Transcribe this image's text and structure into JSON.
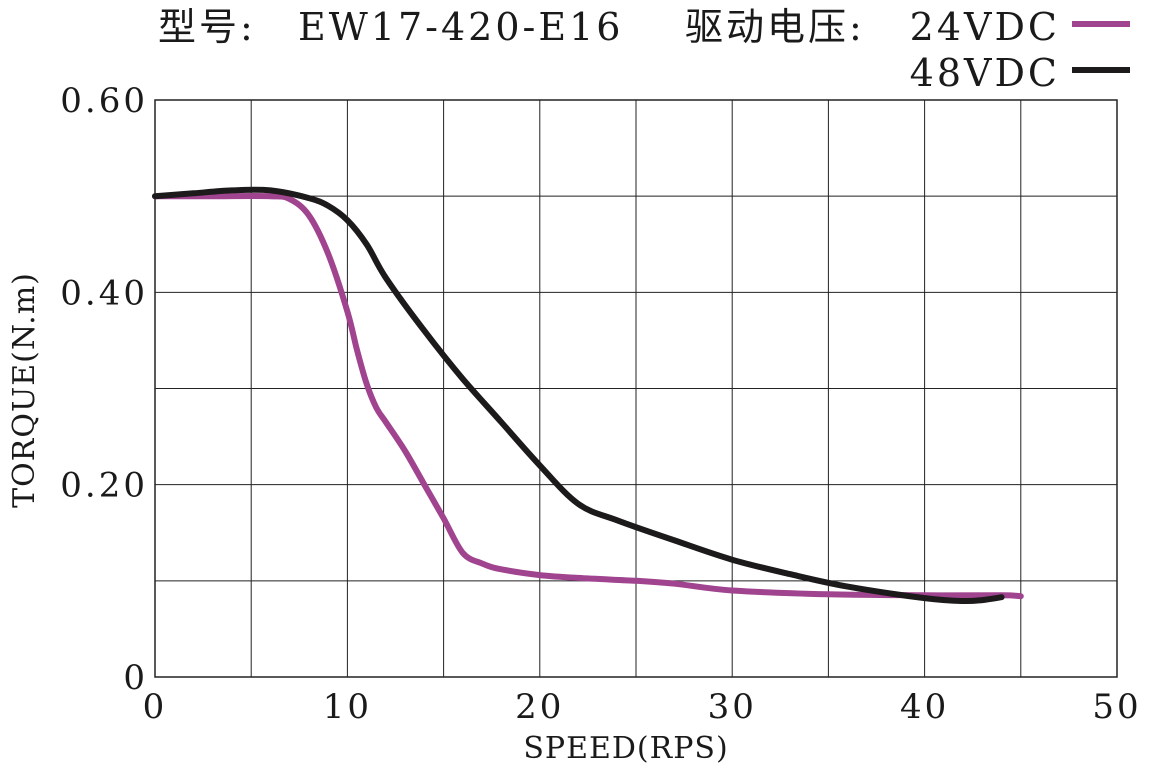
{
  "chart_data": {
    "type": "line",
    "title_model_label": "型号:",
    "title_model": "EW17-420-E16",
    "title_voltage_label": "驱动电压:",
    "xlabel": "SPEED(RPS)",
    "ylabel": "TORQUE(N.m)",
    "xlim": [
      0,
      50
    ],
    "ylim": [
      0,
      0.6
    ],
    "x_ticks": [
      0,
      10,
      20,
      30,
      40,
      50
    ],
    "x_tick_labels": [
      "0",
      "10",
      "20",
      "30",
      "40",
      "50"
    ],
    "y_tick_labels": [
      {
        "value": 0,
        "label": "0"
      },
      {
        "value": 0.2,
        "label": "0.20"
      },
      {
        "value": 0.4,
        "label": "0.40"
      },
      {
        "value": 0.6,
        "label": "0.60"
      }
    ],
    "grid": true,
    "x_grid_step": 5,
    "y_grid_step": 0.1,
    "legend_position": "top-right",
    "series": [
      {
        "name": "24VDC",
        "color": "#a0448f",
        "x": [
          0,
          3,
          6,
          7,
          8,
          9,
          10,
          10.5,
          11,
          11.5,
          12,
          13,
          14,
          15,
          16,
          17,
          18,
          20,
          22,
          25,
          27,
          30,
          35,
          40,
          44,
          45
        ],
        "y": [
          0.5,
          0.5,
          0.5,
          0.497,
          0.48,
          0.44,
          0.38,
          0.34,
          0.305,
          0.28,
          0.265,
          0.235,
          0.2,
          0.165,
          0.129,
          0.118,
          0.112,
          0.106,
          0.103,
          0.1,
          0.097,
          0.09,
          0.086,
          0.085,
          0.085,
          0.084
        ]
      },
      {
        "name": "48VDC",
        "color": "#1c1a1a",
        "x": [
          0,
          2,
          4,
          6,
          8,
          9,
          10,
          11,
          12,
          14,
          16,
          18,
          20,
          22,
          24,
          27,
          30,
          33,
          36,
          40,
          42,
          43,
          44
        ],
        "y": [
          0.5,
          0.503,
          0.506,
          0.506,
          0.498,
          0.49,
          0.475,
          0.45,
          0.415,
          0.36,
          0.31,
          0.265,
          0.22,
          0.18,
          0.163,
          0.142,
          0.122,
          0.107,
          0.094,
          0.082,
          0.079,
          0.08,
          0.083
        ]
      }
    ]
  }
}
